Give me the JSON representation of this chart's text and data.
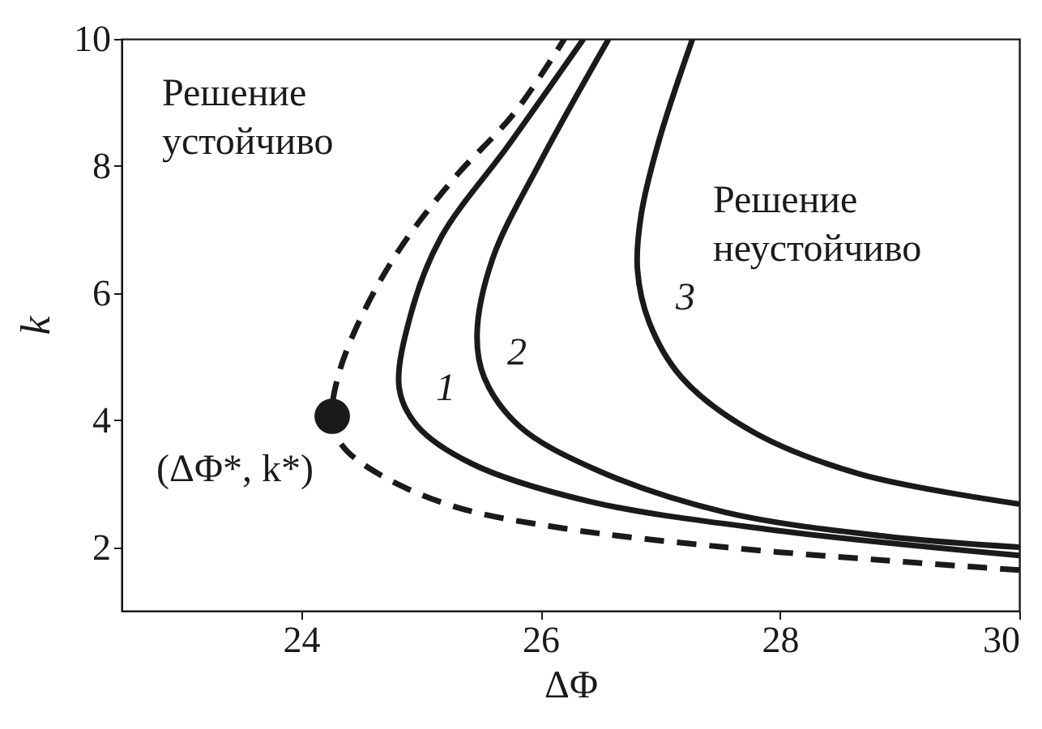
{
  "chart_data": {
    "type": "line",
    "xlabel": "ΔΦ",
    "ylabel": "k",
    "xlim": [
      22.5,
      30
    ],
    "ylim": [
      1,
      10
    ],
    "xticks": [
      24,
      26,
      28,
      30
    ],
    "yticks": [
      2,
      4,
      6,
      8,
      10
    ],
    "grid": false,
    "series": [
      {
        "color": "#1a1a1a",
        "line_style": "dashed",
        "marker": "none",
        "x": [
          30.0,
          28.89,
          27.54,
          26.18,
          25.28,
          24.65,
          24.34,
          24.26,
          24.32,
          24.52,
          24.83,
          25.28,
          25.78,
          26.2
        ],
        "values": [
          1.64,
          1.79,
          2.0,
          2.3,
          2.64,
          3.15,
          3.61,
          4.06,
          4.76,
          5.69,
          6.71,
          7.81,
          8.83,
          10
        ]
      },
      {
        "color": "#1a1a1a",
        "line_style": "solid",
        "marker": "none",
        "x": [
          30.0,
          27.99,
          26.41,
          25.42,
          24.97,
          24.82,
          24.92,
          25.17,
          25.73,
          26.36
        ],
        "values": [
          1.87,
          2.26,
          2.72,
          3.32,
          3.91,
          4.5,
          5.69,
          6.88,
          8.32,
          10
        ]
      },
      {
        "color": "#1a1a1a",
        "line_style": "solid",
        "marker": "none",
        "x": [
          30.0,
          28.89,
          27.54,
          26.45,
          25.82,
          25.53,
          25.47,
          25.6,
          26.0,
          26.57
        ],
        "values": [
          2.0,
          2.17,
          2.55,
          3.23,
          3.91,
          4.67,
          5.35,
          6.54,
          8.07,
          10
        ]
      },
      {
        "color": "#1a1a1a",
        "line_style": "solid",
        "marker": "none",
        "x": [
          30.0,
          28.67,
          27.77,
          27.18,
          26.91,
          26.81,
          26.84,
          26.99,
          27.27
        ],
        "values": [
          2.68,
          3.15,
          3.82,
          4.67,
          5.53,
          6.37,
          7.22,
          8.4,
          10
        ]
      },
      {
        "type": "scatter",
        "color": "#1a1a1a",
        "marker": "circle",
        "x": [
          24.26
        ],
        "values": [
          4.06
        ]
      }
    ],
    "annotations": [
      "1",
      "2",
      "3",
      "(ΔΦ*, k*)",
      "Решение\nустойчиво",
      "Решение\nнеустойчиво"
    ]
  }
}
